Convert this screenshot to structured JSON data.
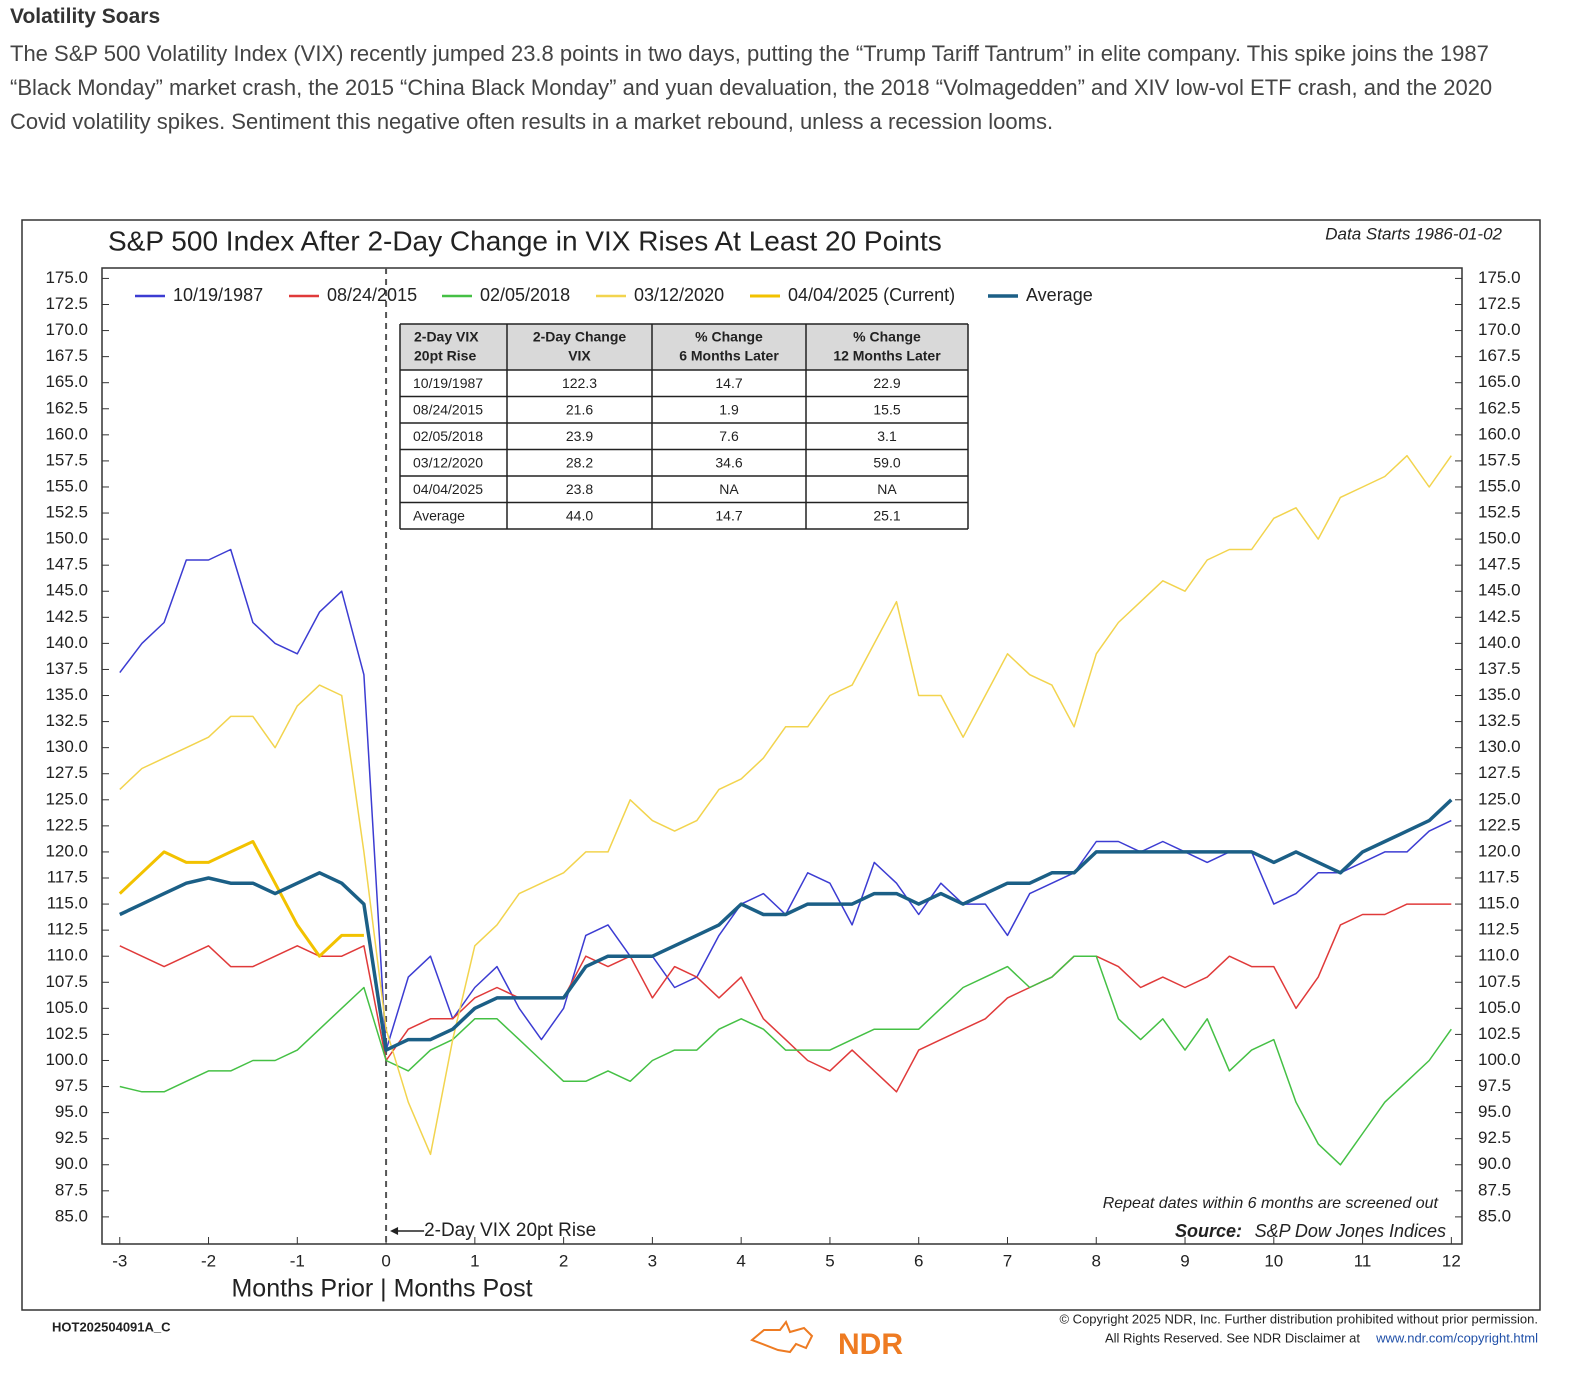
{
  "header": {
    "title": "Volatility Soars",
    "text": "The S&P 500 Volatility Index (VIX) recently jumped 23.8 points in two days, putting the “Trump Tariff Tantrum” in elite company. This spike joins the 1987 “Black Monday” market crash, the 2015 “China Black Monday” and yuan devaluation, the 2018 “Volmagedden” and XIV low-vol ETF crash, and the 2020 Covid volatility spikes. Sentiment this negative often results in a market rebound, unless a recession looms."
  },
  "chart_data": {
    "type": "line",
    "title": "S&P 500 Index After 2-Day Change in VIX Rises At Least 20 Points",
    "subtitle": "Data Starts 1986-01-02",
    "xlabel": "Months Prior | Months Post",
    "annotation": {
      "text": "2-Day VIX 20pt Rise",
      "x": 0
    },
    "note": "Repeat dates within 6 months are screened out",
    "source_label": "Source:",
    "source": "S&P Dow Jones Indices",
    "xlim": [
      -3.2,
      12.12
    ],
    "ylim": [
      82.4,
      176
    ],
    "xticks": [
      -3,
      -2,
      -1,
      0,
      1,
      2,
      3,
      4,
      5,
      6,
      7,
      8,
      9,
      10,
      11,
      12
    ],
    "yticks": [
      {
        "value": 85,
        "label": "85.0"
      },
      87.5,
      {
        "value": 90,
        "label": "90.0"
      },
      92.5,
      {
        "value": 95,
        "label": "95.0"
      },
      97.5,
      {
        "value": 100,
        "label": "100.0"
      },
      102.5,
      {
        "value": 105,
        "label": "105.0"
      },
      107.5,
      {
        "value": 110,
        "label": "110.0"
      },
      112.5,
      {
        "value": 115,
        "label": "115.0"
      },
      117.5,
      {
        "value": 120,
        "label": "120.0"
      },
      122.5,
      {
        "value": 125,
        "label": "125.0"
      },
      127.5,
      {
        "value": 130,
        "label": "130.0"
      },
      132.5,
      {
        "value": 135,
        "label": "135.0"
      },
      137.5,
      {
        "value": 140,
        "label": "140.0"
      },
      142.5,
      {
        "value": 145,
        "label": "145.0"
      },
      147.5,
      {
        "value": 150,
        "label": "150.0"
      },
      152.5,
      {
        "value": 155,
        "label": "155.0"
      },
      157.5,
      {
        "value": 160,
        "label": "160.0"
      },
      162.5,
      {
        "value": 165,
        "label": "165.0"
      },
      167.5,
      {
        "value": 170,
        "label": "170.0"
      },
      172.5,
      {
        "value": 175,
        "label": "175.0"
      }
    ],
    "x": [
      -3,
      -2.75,
      -2.5,
      -2.25,
      -2,
      -1.75,
      -1.5,
      -1.25,
      -1,
      -0.75,
      -0.5,
      -0.25,
      0,
      0.25,
      0.5,
      0.75,
      1,
      1.25,
      1.5,
      1.75,
      2,
      2.25,
      2.5,
      2.75,
      3,
      3.25,
      3.5,
      3.75,
      4,
      4.25,
      4.5,
      4.75,
      5,
      5.25,
      5.5,
      5.75,
      6,
      6.25,
      6.5,
      6.75,
      7,
      7.25,
      7.5,
      7.75,
      8,
      8.25,
      8.5,
      8.75,
      9,
      9.25,
      9.5,
      9.75,
      10,
      10.25,
      10.5,
      10.75,
      11,
      11.25,
      11.5,
      11.75,
      12
    ],
    "series": [
      {
        "name": "10/19/1987",
        "color": "#3c3cd2",
        "width": 1.5,
        "values": [
          137.2,
          140,
          142,
          148,
          148,
          149,
          142,
          140,
          139,
          143,
          145,
          137,
          101,
          108,
          110,
          104,
          107,
          109,
          105,
          102,
          105,
          112,
          113,
          110,
          110,
          107,
          108,
          112,
          115,
          116,
          114,
          118,
          117,
          113,
          119,
          117,
          114,
          117,
          115,
          115,
          112,
          116,
          117,
          118,
          121,
          121,
          120,
          121,
          120,
          119,
          120,
          120,
          115,
          116,
          118,
          118,
          119,
          120,
          120,
          122,
          123
        ]
      },
      {
        "name": "08/24/2015",
        "color": "#e03a3a",
        "width": 1.5,
        "values": [
          111,
          110,
          109,
          110,
          111,
          109,
          109,
          110,
          111,
          110,
          110,
          111,
          100,
          103,
          104,
          104,
          106,
          107,
          106,
          106,
          106,
          110,
          109,
          110,
          106,
          109,
          108,
          106,
          108,
          104,
          102,
          100,
          99,
          101,
          99,
          97,
          101,
          102,
          103,
          104,
          106,
          107,
          108,
          110,
          110,
          109,
          107,
          108,
          107,
          108,
          110,
          109,
          109,
          105,
          108,
          113,
          114,
          114,
          115,
          115,
          115
        ]
      },
      {
        "name": "02/05/2018",
        "color": "#45c045",
        "width": 1.5,
        "values": [
          97.5,
          97,
          97,
          98,
          99,
          99,
          100,
          100,
          101,
          103,
          105,
          107,
          100,
          99,
          101,
          102,
          104,
          104,
          102,
          100,
          98,
          98,
          99,
          98,
          100,
          101,
          101,
          103,
          104,
          103,
          101,
          101,
          101,
          102,
          103,
          103,
          103,
          105,
          107,
          108,
          109,
          107,
          108,
          110,
          110,
          104,
          102,
          104,
          101,
          104,
          99,
          101,
          102,
          96,
          92,
          90,
          93,
          96,
          98,
          100,
          103
        ]
      },
      {
        "name": "03/12/2020",
        "color": "#f2d44e",
        "width": 1.5,
        "values": [
          126,
          128,
          129,
          130,
          131,
          133,
          133,
          130,
          134,
          136,
          135,
          120,
          103,
          96,
          91,
          102,
          111,
          113,
          116,
          117,
          118,
          120,
          120,
          125,
          123,
          122,
          123,
          126,
          127,
          129,
          132,
          132,
          135,
          136,
          140,
          144,
          135,
          135,
          131,
          135,
          139,
          137,
          136,
          132,
          139,
          142,
          144,
          146,
          145,
          148,
          149,
          149,
          152,
          153,
          150,
          154,
          155,
          156,
          158,
          155,
          158
        ]
      },
      {
        "name": "04/04/2025 (Current)",
        "color": "#f2c200",
        "width": 3,
        "values": [
          116,
          118,
          120,
          119,
          119,
          120,
          121,
          117,
          113,
          110,
          112,
          112,
          null,
          null,
          null,
          null,
          null,
          null,
          null,
          null,
          null,
          null,
          null,
          null,
          null,
          null,
          null,
          null,
          null,
          null,
          null,
          null,
          null,
          null,
          null,
          null,
          null,
          null,
          null,
          null,
          null,
          null,
          null,
          null,
          null,
          null,
          null,
          null,
          null,
          null,
          null,
          null,
          null,
          null,
          null,
          null,
          null,
          null,
          null,
          null,
          null
        ]
      },
      {
        "name": "Average",
        "color": "#1b5f86",
        "width": 3.5,
        "values": [
          114,
          115,
          116,
          117,
          117.5,
          117,
          117,
          116,
          117,
          118,
          117,
          115,
          101,
          102,
          102,
          103,
          105,
          106,
          106,
          106,
          106,
          109,
          110,
          110,
          110,
          111,
          112,
          113,
          115,
          114,
          114,
          115,
          115,
          115,
          116,
          116,
          115,
          116,
          115,
          116,
          117,
          117,
          118,
          118,
          120,
          120,
          120,
          120,
          120,
          120,
          120,
          120,
          119,
          120,
          119,
          118,
          120,
          121,
          122,
          123,
          125
        ]
      }
    ],
    "table": {
      "header": [
        [
          "2-Day VIX",
          "20pt Rise"
        ],
        [
          "2-Day Change",
          "VIX"
        ],
        [
          "% Change",
          "6 Months Later"
        ],
        [
          "% Change",
          "12 Months Later"
        ]
      ],
      "rows": [
        [
          "10/19/1987",
          "122.3",
          "14.7",
          "22.9"
        ],
        [
          "08/24/2015",
          "21.6",
          "1.9",
          "15.5"
        ],
        [
          "02/05/2018",
          "23.9",
          "7.6",
          "3.1"
        ],
        [
          "03/12/2020",
          "28.2",
          "34.6",
          "59.0"
        ],
        [
          "04/04/2025",
          "23.8",
          "NA",
          "NA"
        ],
        [
          "Average",
          "44.0",
          "14.7",
          "25.1"
        ]
      ]
    }
  },
  "footer": {
    "code": "HOT202504091A_C",
    "copyright": "© Copyright 2025 NDR, Inc. Further distribution prohibited without prior permission.",
    "rights": "All Rights Reserved. See NDR Disclaimer at",
    "url": "www.ndr.com/copyright.html",
    "logo": "NDR"
  }
}
